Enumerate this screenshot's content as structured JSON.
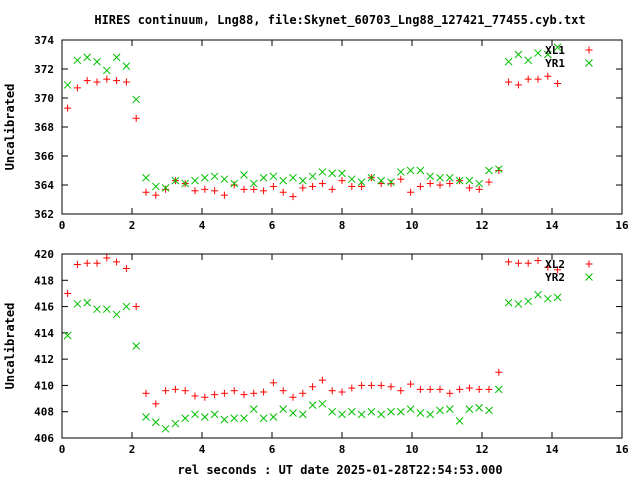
{
  "title": "HIRES continuum, Lng88, file:Skynet_60703_Lng88_127421_77455.cyb.txt",
  "xlabel": "rel seconds : UT date 2025-01-28T22:54:53.000",
  "colors": {
    "red": "#ff0000",
    "green": "#00c000",
    "axis": "#000000"
  },
  "chart_data": [
    {
      "type": "scatter",
      "title": "HIRES continuum, Lng88, file:Skynet_60703_Lng88_127421_77455.cyb.txt",
      "xlabel": "",
      "ylabel": "Uncalibrated",
      "xlim": [
        0,
        16
      ],
      "ylim": [
        362,
        374
      ],
      "xticks": [
        0,
        2,
        4,
        6,
        8,
        10,
        12,
        14,
        16
      ],
      "yticks": [
        362,
        364,
        366,
        368,
        370,
        372,
        374
      ],
      "grid": false,
      "legend_position": "top-right",
      "series": [
        {
          "name": "XL1",
          "marker": "plus",
          "color": "#ff0000",
          "x": [
            0.16,
            0.44,
            0.72,
            1.0,
            1.28,
            1.56,
            1.84,
            2.12,
            2.4,
            2.68,
            2.96,
            3.24,
            3.52,
            3.8,
            4.08,
            4.36,
            4.64,
            4.92,
            5.2,
            5.48,
            5.76,
            6.04,
            6.32,
            6.6,
            6.88,
            7.16,
            7.44,
            7.72,
            8.0,
            8.28,
            8.56,
            8.84,
            9.12,
            9.4,
            9.68,
            9.96,
            10.24,
            10.52,
            10.8,
            11.08,
            11.36,
            11.64,
            11.92,
            12.2,
            12.48,
            12.76,
            13.04,
            13.32,
            13.6,
            13.88,
            14.16
          ],
          "y": [
            369.3,
            370.7,
            371.2,
            371.1,
            371.3,
            371.2,
            371.1,
            368.6,
            363.5,
            363.3,
            363.7,
            364.3,
            364.1,
            363.6,
            363.7,
            363.6,
            363.3,
            364.0,
            363.7,
            363.7,
            363.6,
            363.9,
            363.5,
            363.2,
            363.8,
            363.9,
            364.1,
            363.7,
            364.3,
            363.9,
            363.9,
            364.5,
            364.1,
            364.1,
            364.4,
            363.5,
            363.9,
            364.1,
            364.0,
            364.1,
            364.3,
            363.8,
            363.7,
            364.2,
            365.0,
            371.1,
            370.9,
            371.3,
            371.3,
            371.5,
            371.0
          ]
        },
        {
          "name": "YR1",
          "marker": "cross",
          "color": "#00c000",
          "x": [
            0.16,
            0.44,
            0.72,
            1.0,
            1.28,
            1.56,
            1.84,
            2.12,
            2.4,
            2.68,
            2.96,
            3.24,
            3.52,
            3.8,
            4.08,
            4.36,
            4.64,
            4.92,
            5.2,
            5.48,
            5.76,
            6.04,
            6.32,
            6.6,
            6.88,
            7.16,
            7.44,
            7.72,
            8.0,
            8.28,
            8.56,
            8.84,
            9.12,
            9.4,
            9.68,
            9.96,
            10.24,
            10.52,
            10.8,
            11.08,
            11.36,
            11.64,
            11.92,
            12.2,
            12.48,
            12.76,
            13.04,
            13.32,
            13.6,
            13.88,
            14.16
          ],
          "y": [
            370.9,
            372.6,
            372.8,
            372.5,
            371.9,
            372.8,
            372.2,
            369.9,
            364.5,
            363.9,
            363.8,
            364.3,
            364.1,
            364.3,
            364.5,
            364.6,
            364.4,
            364.1,
            364.7,
            364.1,
            364.5,
            364.6,
            364.3,
            364.5,
            364.3,
            364.6,
            364.9,
            364.8,
            364.8,
            364.4,
            364.2,
            364.5,
            364.3,
            364.2,
            364.9,
            365.0,
            365.0,
            364.6,
            364.5,
            364.5,
            364.3,
            364.3,
            364.1,
            365.0,
            365.1,
            372.5,
            373.0,
            372.6,
            373.1,
            373.0,
            373.5
          ]
        }
      ]
    },
    {
      "type": "scatter",
      "title": "",
      "xlabel": "rel seconds : UT date 2025-01-28T22:54:53.000",
      "ylabel": "Uncalibrated",
      "xlim": [
        0,
        16
      ],
      "ylim": [
        406,
        420
      ],
      "xticks": [
        0,
        2,
        4,
        6,
        8,
        10,
        12,
        14,
        16
      ],
      "yticks": [
        406,
        408,
        410,
        412,
        414,
        416,
        418,
        420
      ],
      "grid": false,
      "legend_position": "top-right",
      "series": [
        {
          "name": "XL2",
          "marker": "plus",
          "color": "#ff0000",
          "x": [
            0.16,
            0.44,
            0.72,
            1.0,
            1.28,
            1.56,
            1.84,
            2.12,
            2.4,
            2.68,
            2.96,
            3.24,
            3.52,
            3.8,
            4.08,
            4.36,
            4.64,
            4.92,
            5.2,
            5.48,
            5.76,
            6.04,
            6.32,
            6.6,
            6.88,
            7.16,
            7.44,
            7.72,
            8.0,
            8.28,
            8.56,
            8.84,
            9.12,
            9.4,
            9.68,
            9.96,
            10.24,
            10.52,
            10.8,
            11.08,
            11.36,
            11.64,
            11.92,
            12.2,
            12.48,
            12.76,
            13.04,
            13.32,
            13.6,
            13.88,
            14.16
          ],
          "y": [
            417.0,
            419.2,
            419.3,
            419.3,
            419.7,
            419.4,
            418.9,
            416.0,
            409.4,
            408.6,
            409.6,
            409.7,
            409.6,
            409.2,
            409.1,
            409.3,
            409.4,
            409.6,
            409.3,
            409.4,
            409.5,
            410.2,
            409.6,
            409.1,
            409.4,
            409.9,
            410.4,
            409.6,
            409.5,
            409.8,
            410.0,
            410.0,
            410.0,
            409.9,
            409.6,
            410.1,
            409.7,
            409.7,
            409.7,
            409.4,
            409.7,
            409.8,
            409.7,
            409.7,
            411.0,
            419.4,
            419.3,
            419.3,
            419.5,
            419.0,
            418.8
          ]
        },
        {
          "name": "YR2",
          "marker": "cross",
          "color": "#00c000",
          "x": [
            0.16,
            0.44,
            0.72,
            1.0,
            1.28,
            1.56,
            1.84,
            2.12,
            2.4,
            2.68,
            2.96,
            3.24,
            3.52,
            3.8,
            4.08,
            4.36,
            4.64,
            4.92,
            5.2,
            5.48,
            5.76,
            6.04,
            6.32,
            6.6,
            6.88,
            7.16,
            7.44,
            7.72,
            8.0,
            8.28,
            8.56,
            8.84,
            9.12,
            9.4,
            9.68,
            9.96,
            10.24,
            10.52,
            10.8,
            11.08,
            11.36,
            11.64,
            11.92,
            12.2,
            12.48,
            12.76,
            13.04,
            13.32,
            13.6,
            13.88,
            14.16
          ],
          "y": [
            413.8,
            416.2,
            416.3,
            415.8,
            415.8,
            415.4,
            416.0,
            413.0,
            407.6,
            407.2,
            406.7,
            407.1,
            407.5,
            407.8,
            407.6,
            407.8,
            407.4,
            407.5,
            407.5,
            408.2,
            407.5,
            407.6,
            408.2,
            407.9,
            407.8,
            408.5,
            408.6,
            408.0,
            407.8,
            408.0,
            407.8,
            408.0,
            407.8,
            408.0,
            408.0,
            408.2,
            407.9,
            407.8,
            408.1,
            408.2,
            407.3,
            408.2,
            408.3,
            408.1,
            409.7,
            416.3,
            416.2,
            416.4,
            416.9,
            416.6,
            416.7
          ]
        }
      ]
    }
  ]
}
